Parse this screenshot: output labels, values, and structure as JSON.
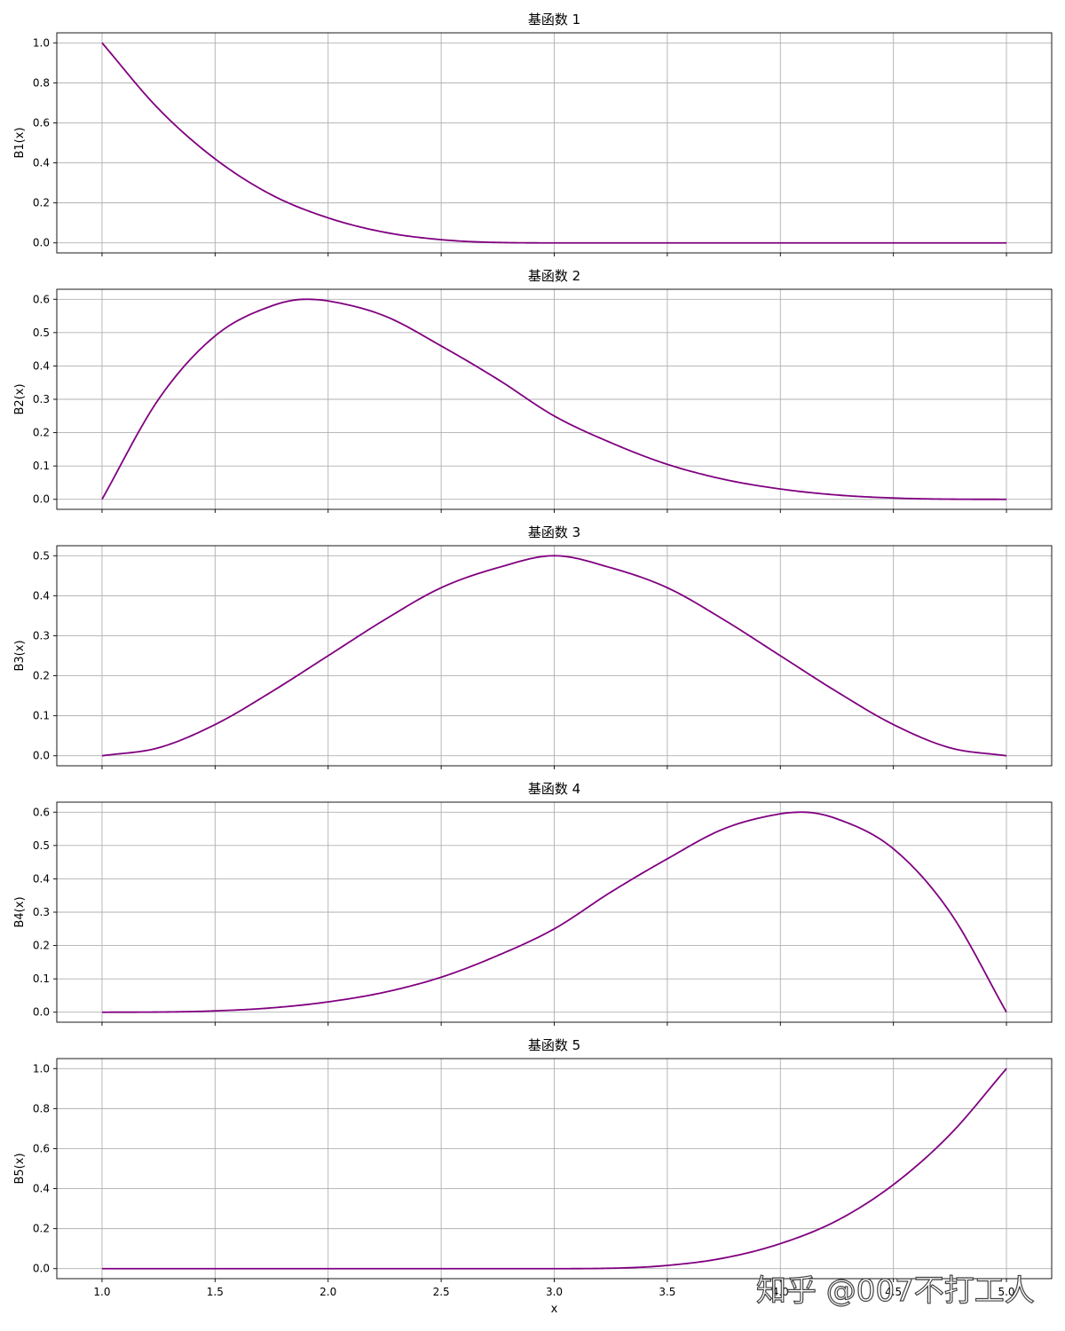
{
  "watermark": "知乎 @007不打工人",
  "chart_data": [
    {
      "type": "line",
      "title": "基函数 1",
      "ylabel": "B1(x)",
      "xlabel": "",
      "xlim": [
        0.8,
        5.2
      ],
      "ylim": [
        -0.05,
        1.05
      ],
      "yticks": [
        0.0,
        0.2,
        0.4,
        0.6,
        0.8,
        1.0
      ],
      "ytick_labels": [
        "0.0",
        "0.2",
        "0.4",
        "0.6",
        "0.8",
        "1.0"
      ],
      "xticks": [
        1.0,
        1.5,
        2.0,
        2.5,
        3.0,
        3.5,
        4.0,
        4.5,
        5.0
      ],
      "xtick_labels": [],
      "grid": true,
      "color": "#800080",
      "x": [
        1.0,
        1.25,
        1.5,
        1.75,
        2.0,
        2.25,
        2.5,
        2.75,
        3.0,
        3.5,
        4.0,
        4.5,
        5.0
      ],
      "y": [
        1.0,
        0.67,
        0.42,
        0.24,
        0.125,
        0.053,
        0.016,
        0.002,
        0.0,
        0.0,
        0.0,
        0.0,
        0.0
      ]
    },
    {
      "type": "line",
      "title": "基函数 2",
      "ylabel": "B2(x)",
      "xlabel": "",
      "xlim": [
        0.8,
        5.2
      ],
      "ylim": [
        -0.03,
        0.63
      ],
      "yticks": [
        0.0,
        0.1,
        0.2,
        0.3,
        0.4,
        0.5,
        0.6
      ],
      "ytick_labels": [
        "0.0",
        "0.1",
        "0.2",
        "0.3",
        "0.4",
        "0.5",
        "0.6"
      ],
      "xticks": [
        1.0,
        1.5,
        2.0,
        2.5,
        3.0,
        3.5,
        4.0,
        4.5,
        5.0
      ],
      "xtick_labels": [],
      "grid": true,
      "color": "#800080",
      "x": [
        1.0,
        1.25,
        1.5,
        1.75,
        1.9,
        2.0,
        2.25,
        2.5,
        2.75,
        3.0,
        3.25,
        3.5,
        3.75,
        4.0,
        4.25,
        4.5,
        4.75,
        5.0
      ],
      "y": [
        0.0,
        0.3,
        0.49,
        0.58,
        0.6,
        0.595,
        0.55,
        0.46,
        0.36,
        0.25,
        0.17,
        0.105,
        0.06,
        0.031,
        0.013,
        0.004,
        0.0005,
        0.0
      ]
    },
    {
      "type": "line",
      "title": "基函数 3",
      "ylabel": "B3(x)",
      "xlabel": "",
      "xlim": [
        0.8,
        5.2
      ],
      "ylim": [
        -0.025,
        0.525
      ],
      "yticks": [
        0.0,
        0.1,
        0.2,
        0.3,
        0.4,
        0.5
      ],
      "ytick_labels": [
        "0.0",
        "0.1",
        "0.2",
        "0.3",
        "0.4",
        "0.5"
      ],
      "xticks": [
        1.0,
        1.5,
        2.0,
        2.5,
        3.0,
        3.5,
        4.0,
        4.5,
        5.0
      ],
      "xtick_labels": [],
      "grid": true,
      "color": "#800080",
      "x": [
        1.0,
        1.25,
        1.5,
        1.75,
        2.0,
        2.25,
        2.5,
        2.75,
        3.0,
        3.25,
        3.5,
        3.75,
        4.0,
        4.25,
        4.5,
        4.75,
        5.0
      ],
      "y": [
        0.0,
        0.02,
        0.078,
        0.16,
        0.25,
        0.34,
        0.42,
        0.47,
        0.5,
        0.47,
        0.42,
        0.34,
        0.25,
        0.16,
        0.078,
        0.02,
        0.0
      ]
    },
    {
      "type": "line",
      "title": "基函数 4",
      "ylabel": "B4(x)",
      "xlabel": "",
      "xlim": [
        0.8,
        5.2
      ],
      "ylim": [
        -0.03,
        0.63
      ],
      "yticks": [
        0.0,
        0.1,
        0.2,
        0.3,
        0.4,
        0.5,
        0.6
      ],
      "ytick_labels": [
        "0.0",
        "0.1",
        "0.2",
        "0.3",
        "0.4",
        "0.5",
        "0.6"
      ],
      "xticks": [
        1.0,
        1.5,
        2.0,
        2.5,
        3.0,
        3.5,
        4.0,
        4.5,
        5.0
      ],
      "xtick_labels": [],
      "grid": true,
      "color": "#800080",
      "x": [
        1.0,
        1.25,
        1.5,
        1.75,
        2.0,
        2.25,
        2.5,
        2.75,
        3.0,
        3.25,
        3.5,
        3.75,
        4.0,
        4.1,
        4.25,
        4.5,
        4.75,
        5.0
      ],
      "y": [
        0.0,
        0.0005,
        0.004,
        0.013,
        0.031,
        0.06,
        0.105,
        0.17,
        0.25,
        0.36,
        0.46,
        0.55,
        0.595,
        0.6,
        0.58,
        0.49,
        0.3,
        0.0
      ]
    },
    {
      "type": "line",
      "title": "基函数 5",
      "ylabel": "B5(x)",
      "xlabel": "x",
      "xlim": [
        0.8,
        5.2
      ],
      "ylim": [
        -0.05,
        1.05
      ],
      "yticks": [
        0.0,
        0.2,
        0.4,
        0.6,
        0.8,
        1.0
      ],
      "ytick_labels": [
        "0.0",
        "0.2",
        "0.4",
        "0.6",
        "0.8",
        "1.0"
      ],
      "xticks": [
        1.0,
        1.5,
        2.0,
        2.5,
        3.0,
        3.5,
        4.0,
        4.5,
        5.0
      ],
      "xtick_labels": [
        "1.0",
        "1.5",
        "2.0",
        "2.5",
        "3.0",
        "3.5",
        "4.0",
        "4.5",
        "5.0"
      ],
      "grid": true,
      "color": "#800080",
      "x": [
        1.0,
        1.5,
        2.0,
        2.5,
        3.0,
        3.25,
        3.5,
        3.75,
        4.0,
        4.25,
        4.5,
        4.75,
        5.0
      ],
      "y": [
        0.0,
        0.0,
        0.0,
        0.0,
        0.0,
        0.002,
        0.016,
        0.053,
        0.125,
        0.24,
        0.42,
        0.67,
        1.0
      ]
    }
  ]
}
